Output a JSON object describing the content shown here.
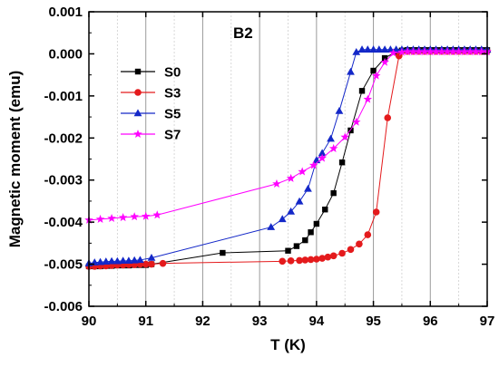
{
  "chart_data": {
    "type": "line",
    "title": "",
    "annotation": "B2",
    "xlabel": "T (K)",
    "ylabel": "Magnetic moment (emu)",
    "xlim": [
      90,
      97
    ],
    "ylim": [
      -0.006,
      0.001
    ],
    "xticks": [
      "90",
      "91",
      "92",
      "93",
      "94",
      "95",
      "96",
      "97"
    ],
    "yticks": [
      "0.001",
      "0.000",
      "-0.001",
      "-0.002",
      "-0.003",
      "-0.004",
      "-0.005",
      "-0.006"
    ],
    "grid": "vertical",
    "legend_position": "upper-left",
    "series": [
      {
        "name": "S0",
        "color": "#000000",
        "marker": "square",
        "x": [
          90.0,
          90.1,
          90.2,
          90.3,
          90.4,
          90.5,
          90.6,
          90.7,
          90.8,
          90.9,
          91.0,
          91.1,
          92.35,
          93.5,
          93.65,
          93.8,
          93.9,
          94.0,
          94.15,
          94.3,
          94.45,
          94.6,
          94.8,
          95.0,
          95.2,
          95.4,
          95.5,
          95.6,
          95.7,
          95.8,
          95.9,
          96.0,
          96.1,
          96.2,
          96.3,
          96.4,
          96.5,
          96.6,
          96.7,
          96.8,
          96.9,
          97.0
        ],
        "y": [
          -0.00505,
          -0.00505,
          -0.00505,
          -0.00504,
          -0.00504,
          -0.00503,
          -0.00503,
          -0.00503,
          -0.00502,
          -0.00502,
          -0.00502,
          -0.005,
          -0.00473,
          -0.00468,
          -0.00457,
          -0.00443,
          -0.00424,
          -0.00404,
          -0.0037,
          -0.00331,
          -0.00258,
          -0.00182,
          -0.00088,
          -0.0004,
          -0.0001,
          5e-05,
          8e-05,
          9e-05,
          9e-05,
          9e-05,
          9e-05,
          9e-05,
          9e-05,
          9e-05,
          9e-05,
          9e-05,
          9e-05,
          9e-05,
          9e-05,
          9e-05,
          9e-05,
          9e-05
        ]
      },
      {
        "name": "S3",
        "color": "#e41a1c",
        "marker": "circle",
        "x": [
          90.0,
          90.1,
          90.2,
          90.3,
          90.4,
          90.5,
          90.6,
          90.7,
          90.8,
          90.9,
          91.0,
          91.1,
          91.3,
          93.4,
          93.55,
          93.7,
          93.8,
          93.9,
          94.0,
          94.1,
          94.2,
          94.3,
          94.45,
          94.6,
          94.75,
          94.9,
          95.05,
          95.25,
          95.45,
          95.6,
          95.7,
          95.8,
          95.9,
          96.0,
          96.1,
          96.2,
          96.3,
          96.4,
          96.5,
          96.6,
          96.7,
          96.8,
          96.9,
          97.0
        ],
        "y": [
          -0.00505,
          -0.00505,
          -0.00504,
          -0.00504,
          -0.00503,
          -0.00502,
          -0.00502,
          -0.00501,
          -0.00501,
          -0.005,
          -0.005,
          -0.005,
          -0.00498,
          -0.00493,
          -0.00492,
          -0.00491,
          -0.0049,
          -0.00489,
          -0.00488,
          -0.00486,
          -0.00483,
          -0.0048,
          -0.00474,
          -0.00465,
          -0.00452,
          -0.0043,
          -0.00376,
          -0.00152,
          -5e-05,
          6e-05,
          6e-05,
          6e-05,
          6e-05,
          6e-05,
          6e-05,
          6e-05,
          6e-05,
          6e-05,
          6e-05,
          6e-05,
          6e-05,
          6e-05,
          6e-05,
          6e-05
        ]
      },
      {
        "name": "S5",
        "color": "#1428c8",
        "marker": "triangle",
        "x": [
          90.0,
          90.1,
          90.2,
          90.3,
          90.4,
          90.5,
          90.6,
          90.7,
          90.8,
          90.9,
          91.1,
          93.2,
          93.4,
          93.55,
          93.7,
          93.85,
          94.0,
          94.1,
          94.25,
          94.4,
          94.6,
          94.7,
          94.8,
          94.9,
          95.0,
          95.1,
          95.2,
          95.3,
          95.4,
          95.5,
          95.6,
          95.7,
          95.8,
          95.9,
          96.0,
          96.1,
          96.2,
          96.3,
          96.4,
          96.5,
          96.6,
          96.7,
          96.8,
          96.9,
          97.0
        ],
        "y": [
          -0.00498,
          -0.00496,
          -0.00495,
          -0.00494,
          -0.00493,
          -0.00493,
          -0.00492,
          -0.00492,
          -0.00491,
          -0.0049,
          -0.00485,
          -0.00412,
          -0.00393,
          -0.00375,
          -0.00351,
          -0.00321,
          -0.00253,
          -0.00236,
          -0.00202,
          -0.00136,
          -0.00043,
          4e-05,
          0.0001,
          0.0001,
          0.0001,
          0.0001,
          0.0001,
          0.0001,
          0.0001,
          0.0001,
          0.0001,
          0.0001,
          0.0001,
          0.0001,
          0.0001,
          0.0001,
          0.0001,
          0.0001,
          0.0001,
          0.0001,
          0.0001,
          0.0001,
          0.0001,
          0.0001,
          0.0001
        ]
      },
      {
        "name": "S7",
        "color": "#ff00ff",
        "marker": "star",
        "x": [
          90.0,
          90.2,
          90.4,
          90.6,
          90.8,
          91.0,
          91.2,
          93.3,
          93.55,
          93.75,
          93.95,
          94.1,
          94.3,
          94.5,
          94.7,
          94.9,
          95.05,
          95.2,
          95.35,
          95.5,
          95.6,
          95.7,
          95.8,
          95.9,
          96.0,
          96.1,
          96.2,
          96.3,
          96.4,
          96.5,
          96.6,
          96.7,
          96.8,
          96.9,
          97.0
        ],
        "y": [
          -0.00395,
          -0.00393,
          -0.00391,
          -0.00389,
          -0.00387,
          -0.00386,
          -0.00383,
          -0.00309,
          -0.00296,
          -0.0028,
          -0.00265,
          -0.00248,
          -0.00225,
          -0.00198,
          -0.00162,
          -0.00108,
          -0.00052,
          -0.0002,
          2e-05,
          4e-05,
          5e-05,
          5e-05,
          5e-05,
          5e-05,
          5e-05,
          5e-05,
          5e-05,
          5e-05,
          5e-05,
          5e-05,
          5e-05,
          5e-05,
          5e-05,
          5e-05,
          5e-05
        ]
      }
    ]
  }
}
